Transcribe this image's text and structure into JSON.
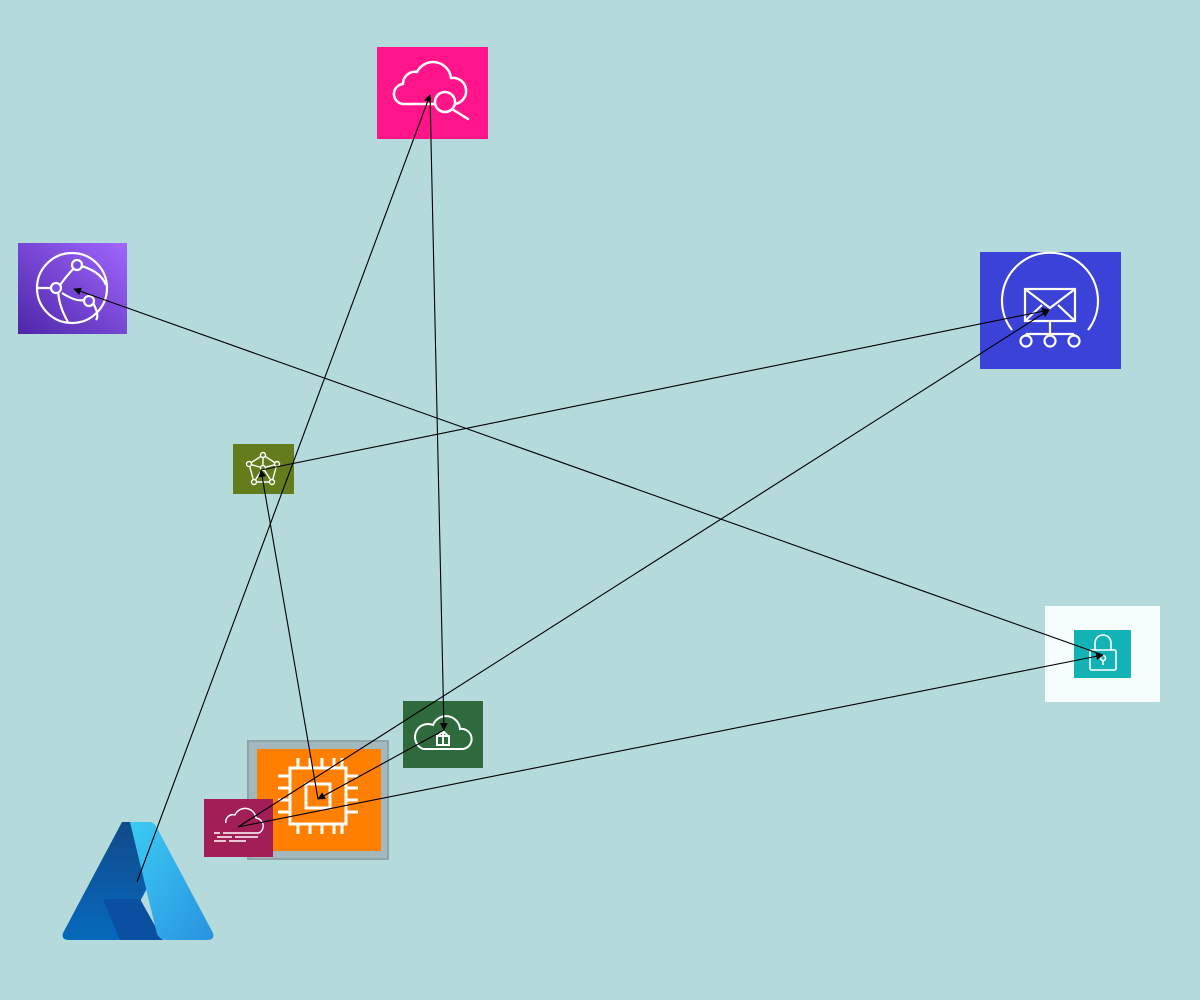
{
  "background": "#b4dadb",
  "nodes": [
    {
      "id": "cloud-search",
      "icon": "cloud-search-icon",
      "color": "#ff1589"
    },
    {
      "id": "cloudfront",
      "icon": "globe-network-icon",
      "color": "#8a5cf0"
    },
    {
      "id": "sns",
      "icon": "email-notification-icon",
      "color": "#3a42d8"
    },
    {
      "id": "graph-db",
      "icon": "graph-network-icon",
      "color": "#637d1d"
    },
    {
      "id": "secrets",
      "icon": "padlock-icon",
      "color": "#13b3b5"
    },
    {
      "id": "cloud-upload",
      "icon": "cloud-upload-icon",
      "color": "#2f6a3d"
    },
    {
      "id": "ec2",
      "icon": "cpu-chip-icon",
      "color": "#ff7f00"
    },
    {
      "id": "cloud-stream",
      "icon": "cloud-stream-icon",
      "color": "#a21e57"
    },
    {
      "id": "azure",
      "icon": "azure-logo-icon",
      "color": "#1a78c9"
    }
  ],
  "edges": [
    {
      "from": "azure",
      "to": "cloud-search"
    },
    {
      "from": "cloud-search",
      "to": "cloud-upload"
    },
    {
      "from": "secrets",
      "to": "cloudfront"
    },
    {
      "from": "graph-db",
      "to": "sns"
    },
    {
      "from": "ec2",
      "to": "graph-db"
    },
    {
      "from": "cloud-stream",
      "to": "sns"
    },
    {
      "from": "cloud-upload",
      "to": "ec2"
    },
    {
      "from": "cloud-stream",
      "to": "secrets"
    }
  ]
}
